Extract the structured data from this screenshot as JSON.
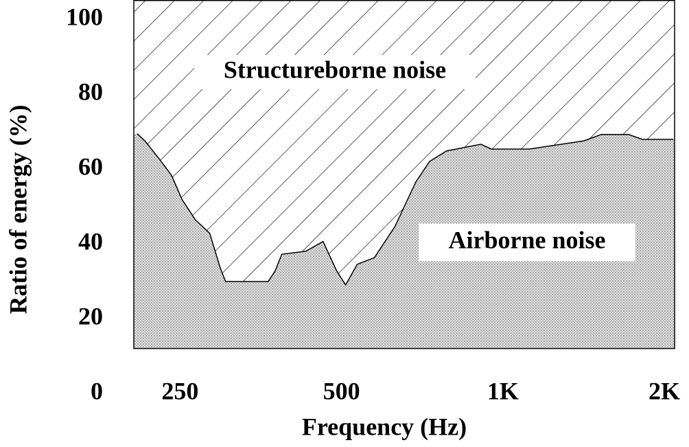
{
  "chart_data": {
    "type": "area",
    "title": null,
    "x_label": "Frequency (Hz)",
    "y_label": "Ratio of energy (%)",
    "x_log_scale": true,
    "xlim": [
      205,
      2090
    ],
    "ylim": [
      12,
      105
    ],
    "xticks": [
      250,
      500,
      {
        "value": 1000,
        "label": "1K"
      },
      {
        "value": 2000,
        "label": "2K"
      }
    ],
    "yticks": [
      0,
      20,
      40,
      60,
      80,
      100
    ],
    "x": [
      208,
      215,
      228,
      241,
      252,
      267,
      284,
      297,
      304,
      365,
      376,
      387,
      429,
      462,
      490,
      509,
      535,
      576,
      629,
      688,
      730,
      785,
      910,
      951,
      1119,
      1416,
      1525,
      1716,
      1820,
      2078
    ],
    "series": [
      {
        "name": "Airborne noise",
        "color": "#d9d9d9",
        "values": [
          69.4,
          67.5,
          62.9,
          58.3,
          51.9,
          46.4,
          42.8,
          33.6,
          29.9,
          29.9,
          32.7,
          37.2,
          38.0,
          40.6,
          32.7,
          29.0,
          34.5,
          36.3,
          44.6,
          56.5,
          62.0,
          64.8,
          66.6,
          65.3,
          65.3,
          67.5,
          69.2,
          69.2,
          67.9,
          67.9
        ]
      }
    ],
    "annotations": [
      "Structureborne noise"
    ]
  }
}
